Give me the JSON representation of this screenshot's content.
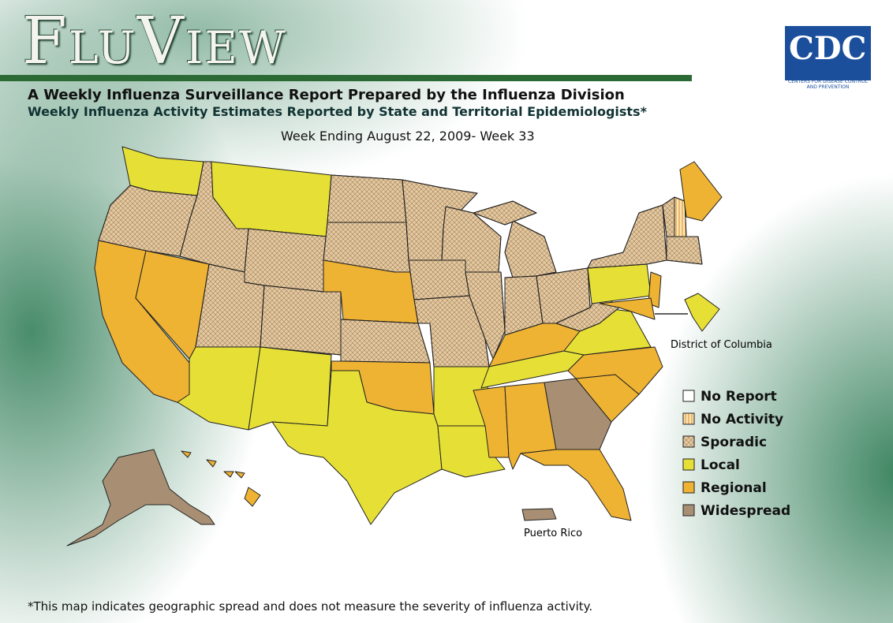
{
  "header": {
    "title": "FluView",
    "subtitle": "A Weekly Influenza Surveillance Report Prepared by the Influenza Division",
    "description": "Weekly Influenza Activity Estimates Reported by State and Territorial Epidemiologists*",
    "week": "Week Ending August 22, 2009- Week 33"
  },
  "logo": {
    "text": "CDC",
    "caption": "Centers for Disease Control and Prevention"
  },
  "legend": {
    "items": [
      {
        "label": "No Report",
        "color": "#ffffff"
      },
      {
        "label": "No Activity",
        "color": "#fbe6b4"
      },
      {
        "label": "Sporadic",
        "color": "#dfcba6"
      },
      {
        "label": "Local",
        "color": "#e6e036"
      },
      {
        "label": "Regional",
        "color": "#efb333"
      },
      {
        "label": "Widespread",
        "color": "#a88f73"
      }
    ]
  },
  "map": {
    "labels": [
      "District of Columbia",
      "Puerto Rico"
    ]
  },
  "footnote": "*This map indicates geographic spread and does not measure the severity of influenza activity."
}
